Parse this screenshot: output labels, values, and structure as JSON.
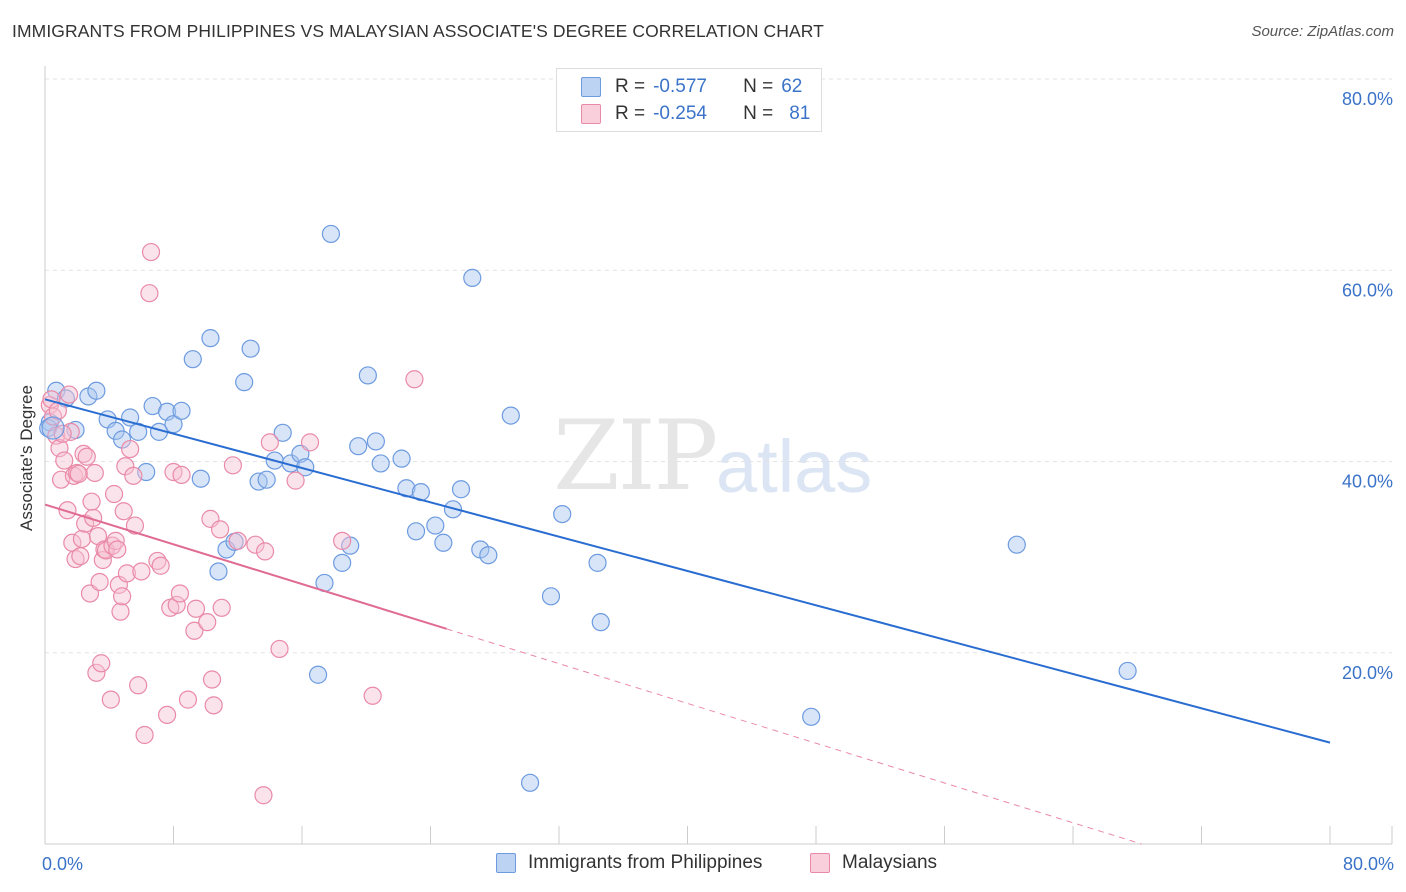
{
  "chart_data": {
    "type": "scatter",
    "title": "IMMIGRANTS FROM PHILIPPINES VS MALAYSIAN ASSOCIATE'S DEGREE CORRELATION CHART",
    "source": "Source: ZipAtlas.com",
    "xlabel": "",
    "ylabel": "Associate's Degree",
    "xlim": [
      0,
      80
    ],
    "ylim": [
      0,
      80
    ],
    "x_tick_labels": [
      "0.0%",
      "80.0%"
    ],
    "y_ticks": [
      20,
      40,
      60,
      80
    ],
    "y_tick_labels": [
      "20.0%",
      "40.0%",
      "60.0%",
      "80.0%"
    ],
    "watermark": {
      "zip": "ZIP",
      "atlas": "atlas"
    },
    "legend": [
      {
        "r_label": "R =",
        "r_value": "-0.577",
        "n_label": "N =",
        "n_value": "62"
      },
      {
        "r_label": "R =",
        "r_value": "-0.254",
        "n_label": "N =",
        "n_value": "81"
      }
    ],
    "series": [
      {
        "name": "Immigrants from Philippines",
        "color": "#6d9be0",
        "fill": "#a9c6f0",
        "trend": {
          "x": [
            0,
            80
          ],
          "y": [
            46.5,
            10.6
          ],
          "style": "solid",
          "color": "#2a6dd1"
        },
        "points": [
          [
            0.3,
            44.1
          ],
          [
            0.7,
            47.4
          ],
          [
            1.3,
            46.6
          ],
          [
            1.9,
            43.3
          ],
          [
            2.7,
            46.8
          ],
          [
            3.2,
            47.4
          ],
          [
            3.9,
            44.4
          ],
          [
            4.4,
            43.2
          ],
          [
            4.8,
            42.3
          ],
          [
            5.3,
            44.6
          ],
          [
            5.8,
            43.1
          ],
          [
            6.3,
            38.9
          ],
          [
            6.7,
            45.8
          ],
          [
            7.1,
            43.1
          ],
          [
            7.6,
            45.2
          ],
          [
            8.0,
            43.9
          ],
          [
            8.5,
            45.3
          ],
          [
            9.2,
            50.7
          ],
          [
            9.7,
            38.2
          ],
          [
            10.3,
            52.9
          ],
          [
            10.8,
            28.5
          ],
          [
            11.3,
            30.8
          ],
          [
            11.8,
            31.6
          ],
          [
            12.4,
            48.3
          ],
          [
            12.8,
            51.8
          ],
          [
            13.3,
            37.9
          ],
          [
            13.8,
            38.1
          ],
          [
            14.3,
            40.1
          ],
          [
            14.8,
            43.0
          ],
          [
            15.3,
            39.8
          ],
          [
            15.9,
            40.8
          ],
          [
            16.2,
            39.4
          ],
          [
            17.0,
            17.7
          ],
          [
            17.4,
            27.3
          ],
          [
            17.8,
            63.8
          ],
          [
            18.5,
            29.4
          ],
          [
            19.0,
            31.2
          ],
          [
            19.5,
            41.6
          ],
          [
            20.1,
            49.0
          ],
          [
            20.6,
            42.1
          ],
          [
            20.9,
            39.8
          ],
          [
            22.2,
            40.3
          ],
          [
            22.5,
            37.2
          ],
          [
            23.1,
            32.7
          ],
          [
            23.4,
            36.8
          ],
          [
            24.3,
            33.3
          ],
          [
            24.8,
            31.5
          ],
          [
            25.4,
            35.0
          ],
          [
            25.9,
            37.1
          ],
          [
            26.6,
            59.2
          ],
          [
            27.1,
            30.8
          ],
          [
            27.6,
            30.2
          ],
          [
            29.0,
            44.8
          ],
          [
            30.2,
            6.4
          ],
          [
            31.5,
            25.9
          ],
          [
            32.2,
            34.5
          ],
          [
            34.4,
            29.4
          ],
          [
            34.6,
            23.2
          ],
          [
            47.7,
            13.3
          ],
          [
            60.5,
            31.3
          ],
          [
            67.4,
            18.1
          ],
          [
            0.2,
            43.5
          ]
        ]
      },
      {
        "name": "Malaysians",
        "color": "#e98aa8",
        "fill": "#f7c1d2",
        "trend": {
          "x": [
            0,
            25
          ],
          "y": [
            35.5,
            22.5
          ],
          "style": "solid",
          "color": "#e06b93"
        },
        "trend_ext": {
          "x": [
            25,
            80
          ],
          "y": [
            22.5,
            -6.1
          ],
          "style": "dashed",
          "color": "#e98aa8"
        },
        "points": [
          [
            0.3,
            45.9
          ],
          [
            0.5,
            44.7
          ],
          [
            0.7,
            42.7
          ],
          [
            0.9,
            41.4
          ],
          [
            1.0,
            38.1
          ],
          [
            1.2,
            40.1
          ],
          [
            1.4,
            34.9
          ],
          [
            1.6,
            43.1
          ],
          [
            1.7,
            31.5
          ],
          [
            1.8,
            38.5
          ],
          [
            1.9,
            29.8
          ],
          [
            2.0,
            38.8
          ],
          [
            2.2,
            30.1
          ],
          [
            2.3,
            31.9
          ],
          [
            2.4,
            40.8
          ],
          [
            2.5,
            33.5
          ],
          [
            2.6,
            40.5
          ],
          [
            2.8,
            26.2
          ],
          [
            2.9,
            35.8
          ],
          [
            3.0,
            34.1
          ],
          [
            3.1,
            38.8
          ],
          [
            3.2,
            17.9
          ],
          [
            3.3,
            32.2
          ],
          [
            3.4,
            27.4
          ],
          [
            3.5,
            18.9
          ],
          [
            3.6,
            29.7
          ],
          [
            3.7,
            30.8
          ],
          [
            3.8,
            30.7
          ],
          [
            4.1,
            15.1
          ],
          [
            4.2,
            31.2
          ],
          [
            4.3,
            36.6
          ],
          [
            4.4,
            31.7
          ],
          [
            4.5,
            30.8
          ],
          [
            4.6,
            27.1
          ],
          [
            4.7,
            24.3
          ],
          [
            4.8,
            25.9
          ],
          [
            4.9,
            34.8
          ],
          [
            5.0,
            39.5
          ],
          [
            5.1,
            28.3
          ],
          [
            5.3,
            41.3
          ],
          [
            5.5,
            38.5
          ],
          [
            5.6,
            33.3
          ],
          [
            5.8,
            16.6
          ],
          [
            6.0,
            28.5
          ],
          [
            6.2,
            11.4
          ],
          [
            6.6,
            61.9
          ],
          [
            6.5,
            57.6
          ],
          [
            7.0,
            29.6
          ],
          [
            7.2,
            29.1
          ],
          [
            7.6,
            13.5
          ],
          [
            7.8,
            24.7
          ],
          [
            8.0,
            38.9
          ],
          [
            8.2,
            25.0
          ],
          [
            8.4,
            26.2
          ],
          [
            8.5,
            38.6
          ],
          [
            8.9,
            15.1
          ],
          [
            9.3,
            22.3
          ],
          [
            9.4,
            24.6
          ],
          [
            10.1,
            23.2
          ],
          [
            10.3,
            34.0
          ],
          [
            10.4,
            17.2
          ],
          [
            10.5,
            14.5
          ],
          [
            10.9,
            32.9
          ],
          [
            11.0,
            24.7
          ],
          [
            11.7,
            39.6
          ],
          [
            12.0,
            31.7
          ],
          [
            13.1,
            31.3
          ],
          [
            13.6,
            5.1
          ],
          [
            13.7,
            30.6
          ],
          [
            14.0,
            42.0
          ],
          [
            14.6,
            20.4
          ],
          [
            15.6,
            38.0
          ],
          [
            16.5,
            42.0
          ],
          [
            18.5,
            31.7
          ],
          [
            20.4,
            15.5
          ],
          [
            23.0,
            48.6
          ],
          [
            0.4,
            46.5
          ],
          [
            1.1,
            42.9
          ],
          [
            2.1,
            38.7
          ],
          [
            1.5,
            47.0
          ],
          [
            0.8,
            45.3
          ]
        ]
      }
    ]
  }
}
